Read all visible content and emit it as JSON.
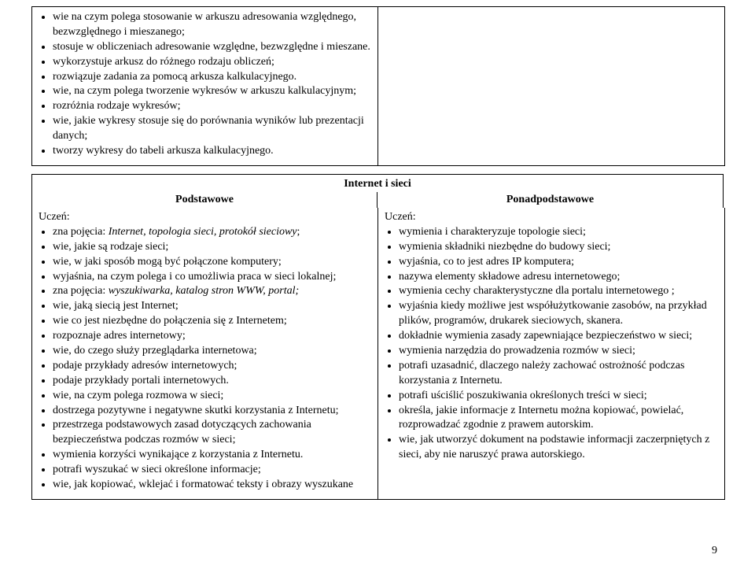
{
  "top_block": {
    "left_items": [
      "wie na czym polega stosowanie w arkuszu adresowania względnego, bezwzględnego i mieszanego;",
      "stosuje w obliczeniach adresowanie względne, bezwzględne i mieszane.",
      "wykorzystuje arkusz do różnego rodzaju obliczeń;",
      "rozwiązuje zadania za pomocą arkusza kalkulacyjnego.",
      "wie, na czym polega tworzenie wykresów w arkuszu kalkulacyjnym;",
      "rozróżnia rodzaje wykresów;",
      "wie, jakie wykresy stosuje się do porównania wyników lub prezentacji danych;",
      "tworzy wykresy do tabeli arkusza kalkulacyjnego."
    ]
  },
  "section2": {
    "title": "Internet i sieci",
    "header_left": "Podstawowe",
    "header_right": "Ponadpodstawowe",
    "uczen": "Uczeń:",
    "left_items_pre_italic": "zna pojęcia: ",
    "left_item1_italic": "Internet, topologia sieci, protokół sieciowy",
    "left_item1_post": ";",
    "left_items": [
      "wie, jakie są rodzaje sieci;",
      "wie, w jaki sposób mogą być połączone komputery;",
      "wyjaśnia, na czym polega i co umożliwia praca w sieci lokalnej;"
    ],
    "left_item5_pre": "zna pojęcia: ",
    "left_item5_italic": "wyszukiwarka, katalog stron WWW, portal;",
    "left_items2": [
      "wie, jaką siecią jest Internet;",
      "wie co jest niezbędne do połączenia się z Internetem;",
      "rozpoznaje adres internetowy;",
      "wie, do czego służy przeglądarka internetowa;",
      "podaje przykłady adresów internetowych;",
      "podaje przykłady portali internetowych.",
      "wie, na czym polega rozmowa w sieci;",
      "dostrzega pozytywne i negatywne skutki korzystania z Internetu;",
      "przestrzega podstawowych zasad dotyczących zachowania bezpieczeństwa podczas rozmów w sieci;",
      "wymienia korzyści wynikające z korzystania z Internetu.",
      "potrafi wyszukać w sieci określone informacje;",
      "wie, jak kopiować, wklejać i formatować teksty i obrazy wyszukane"
    ],
    "right_items": [
      "wymienia i charakteryzuje topologie sieci;",
      "wymienia składniki niezbędne do budowy sieci;",
      "wyjaśnia, co to jest adres IP komputera;",
      "nazywa elementy składowe adresu internetowego;",
      "wymienia cechy charakterystyczne dla portalu internetowego ;",
      "wyjaśnia kiedy możliwe jest współużytkowanie zasobów, na przykład plików, programów, drukarek sieciowych, skanera.",
      "dokładnie wymienia zasady zapewniające bezpieczeństwo w sieci;",
      "wymienia narzędzia do prowadzenia rozmów w sieci;",
      "potrafi uzasadnić, dlaczego należy zachować ostrożność podczas korzystania z Internetu.",
      "potrafi uściślić poszukiwania określonych treści w sieci;",
      "określa, jakie informacje z Internetu można kopiować, powielać, rozprowadzać zgodnie z prawem autorskim.",
      "wie, jak utworzyć dokument na podstawie informacji zaczerpniętych z sieci, aby nie naruszyć prawa autorskiego."
    ]
  },
  "page_number": "9"
}
